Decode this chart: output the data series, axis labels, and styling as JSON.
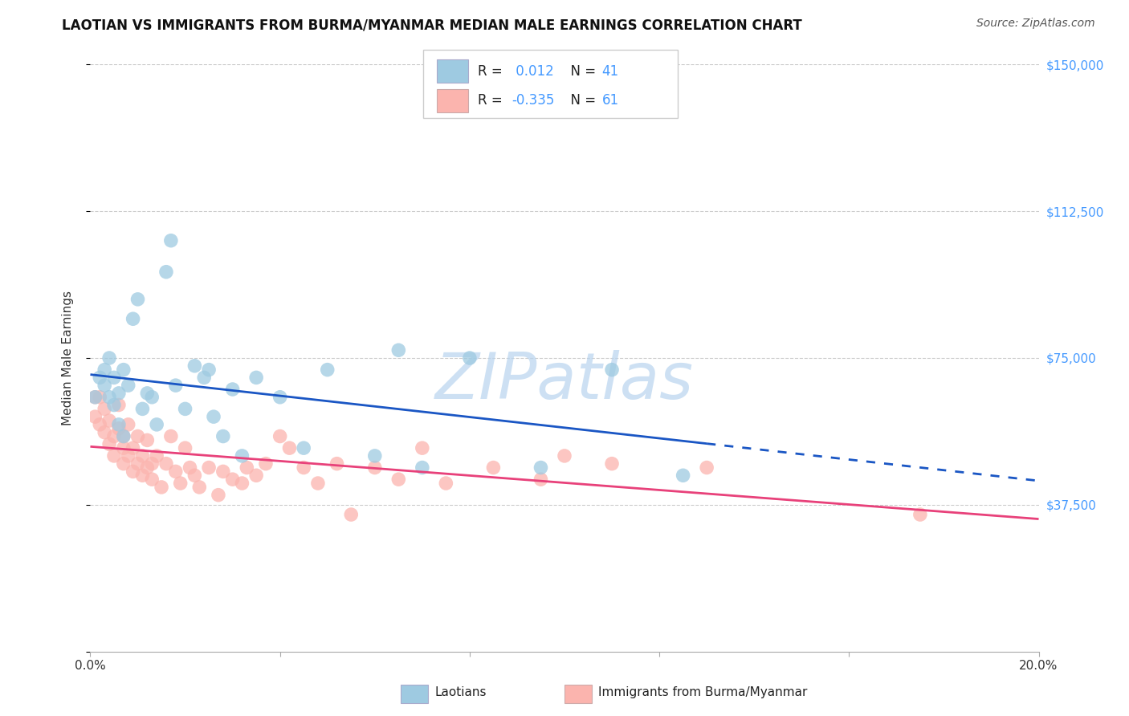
{
  "title": "LAOTIAN VS IMMIGRANTS FROM BURMA/MYANMAR MEDIAN MALE EARNINGS CORRELATION CHART",
  "source": "Source: ZipAtlas.com",
  "ylabel": "Median Male Earnings",
  "yticks": [
    0,
    37500,
    75000,
    112500,
    150000
  ],
  "ytick_labels": [
    "",
    "$37,500",
    "$75,000",
    "$112,500",
    "$150,000"
  ],
  "xmin": 0.0,
  "xmax": 0.2,
  "ymin": 0,
  "ymax": 150000,
  "legend1_R": "0.012",
  "legend1_N": "41",
  "legend2_R": "-0.335",
  "legend2_N": "61",
  "blue_color": "#9ecae1",
  "pink_color": "#fbb4ae",
  "trend_blue": "#1a56c4",
  "trend_pink": "#e8417a",
  "axis_color": "#4499ff",
  "watermark": "ZIPatlas",
  "blue_x": [
    0.001,
    0.002,
    0.003,
    0.003,
    0.004,
    0.004,
    0.005,
    0.005,
    0.006,
    0.006,
    0.007,
    0.007,
    0.008,
    0.009,
    0.01,
    0.011,
    0.012,
    0.013,
    0.014,
    0.016,
    0.017,
    0.018,
    0.02,
    0.022,
    0.024,
    0.025,
    0.026,
    0.028,
    0.03,
    0.032,
    0.035,
    0.04,
    0.045,
    0.05,
    0.06,
    0.065,
    0.07,
    0.08,
    0.095,
    0.11,
    0.125
  ],
  "blue_y": [
    65000,
    70000,
    68000,
    72000,
    75000,
    65000,
    70000,
    63000,
    58000,
    66000,
    55000,
    72000,
    68000,
    85000,
    90000,
    62000,
    66000,
    65000,
    58000,
    97000,
    105000,
    68000,
    62000,
    73000,
    70000,
    72000,
    60000,
    55000,
    67000,
    50000,
    70000,
    65000,
    52000,
    72000,
    50000,
    77000,
    47000,
    75000,
    47000,
    72000,
    45000
  ],
  "pink_x": [
    0.001,
    0.001,
    0.002,
    0.002,
    0.003,
    0.003,
    0.004,
    0.004,
    0.005,
    0.005,
    0.006,
    0.006,
    0.007,
    0.007,
    0.007,
    0.008,
    0.008,
    0.009,
    0.009,
    0.01,
    0.01,
    0.011,
    0.011,
    0.012,
    0.012,
    0.013,
    0.013,
    0.014,
    0.015,
    0.016,
    0.017,
    0.018,
    0.019,
    0.02,
    0.021,
    0.022,
    0.023,
    0.025,
    0.027,
    0.028,
    0.03,
    0.032,
    0.033,
    0.035,
    0.037,
    0.04,
    0.042,
    0.045,
    0.048,
    0.052,
    0.055,
    0.06,
    0.065,
    0.07,
    0.075,
    0.085,
    0.095,
    0.1,
    0.11,
    0.13,
    0.175
  ],
  "pink_y": [
    65000,
    60000,
    65000,
    58000,
    62000,
    56000,
    53000,
    59000,
    55000,
    50000,
    63000,
    57000,
    52000,
    48000,
    55000,
    58000,
    50000,
    46000,
    52000,
    48000,
    55000,
    50000,
    45000,
    54000,
    47000,
    48000,
    44000,
    50000,
    42000,
    48000,
    55000,
    46000,
    43000,
    52000,
    47000,
    45000,
    42000,
    47000,
    40000,
    46000,
    44000,
    43000,
    47000,
    45000,
    48000,
    55000,
    52000,
    47000,
    43000,
    48000,
    35000,
    47000,
    44000,
    52000,
    43000,
    47000,
    44000,
    50000,
    48000,
    47000,
    35000
  ]
}
